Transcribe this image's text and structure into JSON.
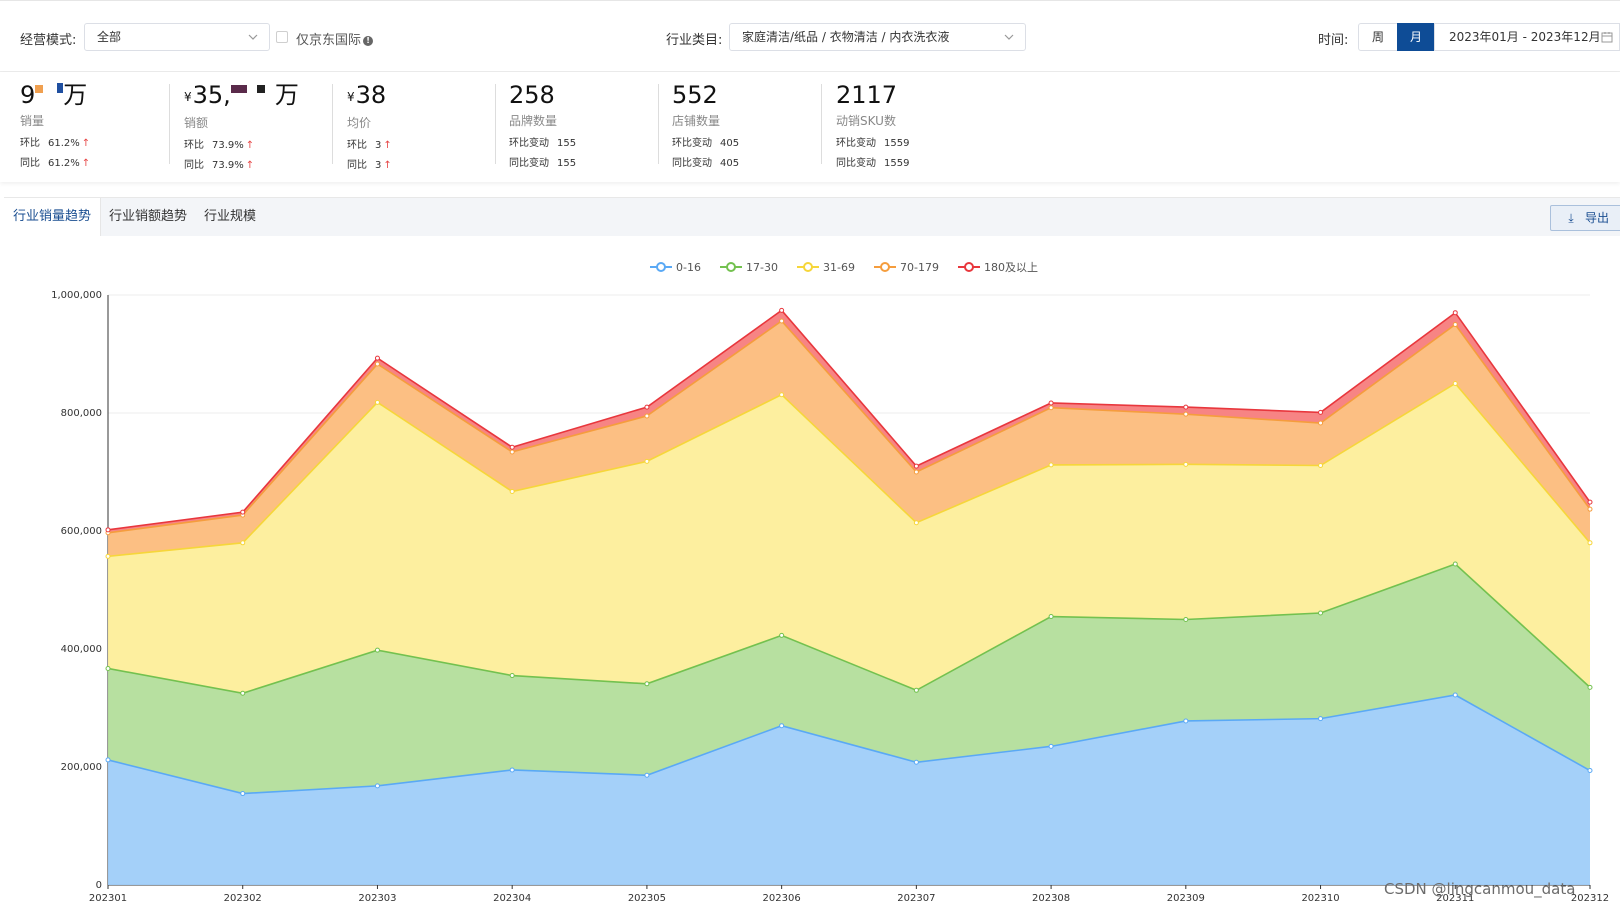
{
  "filters": {
    "mode_label": "经营模式:",
    "mode_value": "全部",
    "checkbox_label": "仅京东国际",
    "category_label": "行业类目:",
    "category_value": "家庭清洁/纸品 / 衣物清洁 / 内衣洗衣液",
    "time_label": "时间:",
    "period_week": "周",
    "period_month": "月",
    "date_range": "2023年01月 - 2023年12月"
  },
  "kpis": [
    {
      "value_prefix": "9",
      "value_suffix": "万",
      "currency": "",
      "label": "销量",
      "line1_label": "环比",
      "line1_value": "61.2%",
      "line2_label": "同比",
      "line2_value": "61.2%",
      "arrows": true
    },
    {
      "value_prefix": "35,",
      "value_suffix": "万",
      "currency": "¥",
      "label": "销额",
      "line1_label": "环比",
      "line1_value": "73.9%",
      "line2_label": "同比",
      "line2_value": "73.9%",
      "arrows": true
    },
    {
      "value_prefix": "38",
      "value_suffix": "",
      "currency": "¥",
      "label": "均价",
      "line1_label": "环比",
      "line1_value": "3",
      "line2_label": "同比",
      "line2_value": "3",
      "arrows": true
    },
    {
      "value_prefix": "258",
      "value_suffix": "",
      "currency": "",
      "label": "品牌数量",
      "line1_label": "环比变动",
      "line1_value": "155",
      "line2_label": "同比变动",
      "line2_value": "155",
      "arrows": false
    },
    {
      "value_prefix": "552",
      "value_suffix": "",
      "currency": "",
      "label": "店铺数量",
      "line1_label": "环比变动",
      "line1_value": "405",
      "line2_label": "同比变动",
      "line2_value": "405",
      "arrows": false
    },
    {
      "value_prefix": "2117",
      "value_suffix": "",
      "currency": "",
      "label": "动销SKU数",
      "line1_label": "环比变动",
      "line1_value": "1559",
      "line2_label": "同比变动",
      "line2_value": "1559",
      "arrows": false
    }
  ],
  "tabs": [
    "行业销量趋势",
    "行业销额趋势",
    "行业规模"
  ],
  "active_tab": 0,
  "export_label": "导出",
  "icons": {
    "chevron": "chevron-down-icon",
    "calendar": "calendar-icon",
    "download": "download-icon",
    "info": "info-icon"
  },
  "colors": {
    "accent": "#0e4c96"
  },
  "chart_data": {
    "type": "area",
    "stacked": true,
    "title": "",
    "xlabel": "",
    "ylabel": "",
    "ylim": [
      0,
      1000000
    ],
    "yticks": [
      0,
      200000,
      400000,
      600000,
      800000,
      1000000
    ],
    "ytick_labels": [
      "0",
      "200,000",
      "400,000",
      "600,000",
      "800,000",
      "1,000,000"
    ],
    "grid": true,
    "legend_position": "top-center",
    "categories": [
      "202301",
      "202302",
      "202303",
      "202304",
      "202305",
      "202306",
      "202307",
      "202308",
      "202309",
      "202310",
      "202311",
      "202312"
    ],
    "series": [
      {
        "name": "0-16",
        "color": "#5aa9f5",
        "fill": "#9fcdf9",
        "values": [
          212000,
          155000,
          168000,
          195000,
          186000,
          270000,
          208000,
          235000,
          278000,
          282000,
          322000,
          194000
        ]
      },
      {
        "name": "17-30",
        "color": "#73c14f",
        "fill": "#b3de9b",
        "values": [
          155000,
          170000,
          230000,
          160000,
          155000,
          153000,
          122000,
          220000,
          172000,
          179000,
          222000,
          141000
        ]
      },
      {
        "name": "31-69",
        "color": "#f6d63a",
        "fill": "#fdee9a",
        "values": [
          190000,
          255000,
          420000,
          312000,
          377000,
          408000,
          284000,
          257000,
          263000,
          250000,
          306000,
          245000
        ]
      },
      {
        "name": "70-179",
        "color": "#f59d3d",
        "fill": "#fcbc7c",
        "values": [
          40000,
          47000,
          65000,
          67000,
          77000,
          125000,
          86000,
          97000,
          85000,
          72000,
          100000,
          57000
        ]
      },
      {
        "name": "180及以上",
        "color": "#e8373d",
        "fill": "#f77d7d",
        "values": [
          5000,
          5000,
          10000,
          8000,
          15000,
          18000,
          10000,
          8000,
          12000,
          18000,
          20000,
          12000
        ]
      }
    ]
  },
  "watermark": "CSDN @lingcanmou_data"
}
